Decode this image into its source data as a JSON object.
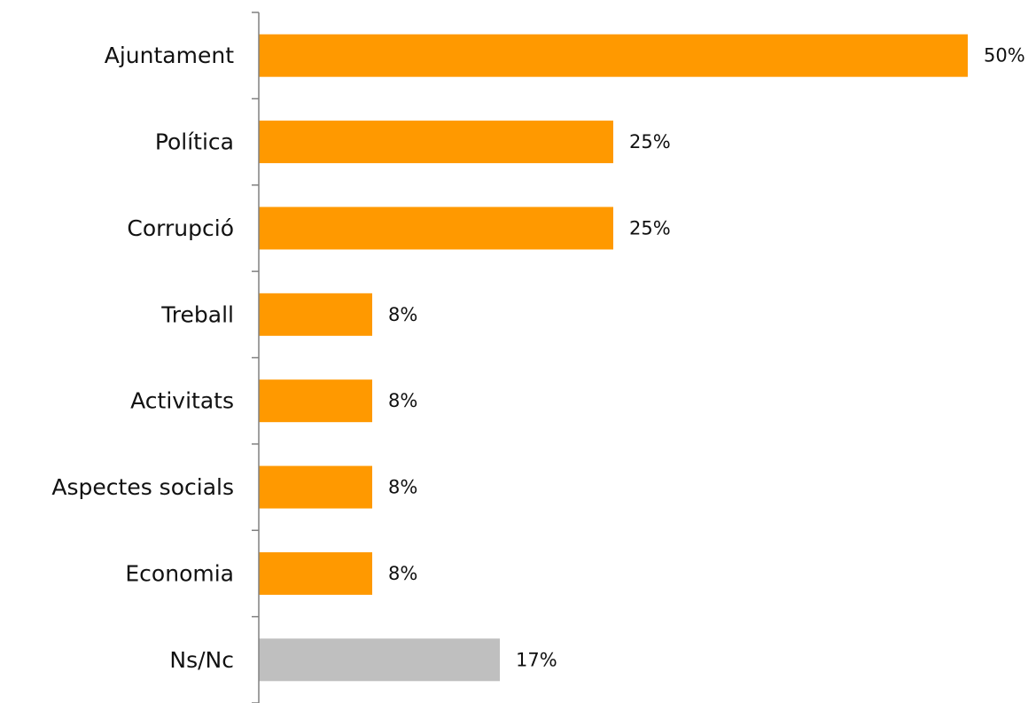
{
  "chart_data": {
    "type": "bar",
    "orientation": "horizontal",
    "categories": [
      "Ajuntament",
      "Política",
      "Corrupció",
      "Treball",
      "Activitats",
      "Aspectes socials",
      "Economia",
      "Ns/Nc"
    ],
    "values": [
      50,
      25,
      25,
      8,
      8,
      8,
      8,
      17
    ],
    "data_labels": [
      "50%",
      "25%",
      "25%",
      "8%",
      "8%",
      "8%",
      "8%",
      "17%"
    ],
    "unit": "%",
    "xlim": [
      0,
      50
    ],
    "grid": false,
    "legend": "none",
    "colors": {
      "bar": "#FF9900",
      "bar_nsnc": "#BFBFBF",
      "axis": "#808080"
    },
    "bar_colors": [
      "#FF9900",
      "#FF9900",
      "#FF9900",
      "#FF9900",
      "#FF9900",
      "#FF9900",
      "#FF9900",
      "#BFBFBF"
    ]
  }
}
